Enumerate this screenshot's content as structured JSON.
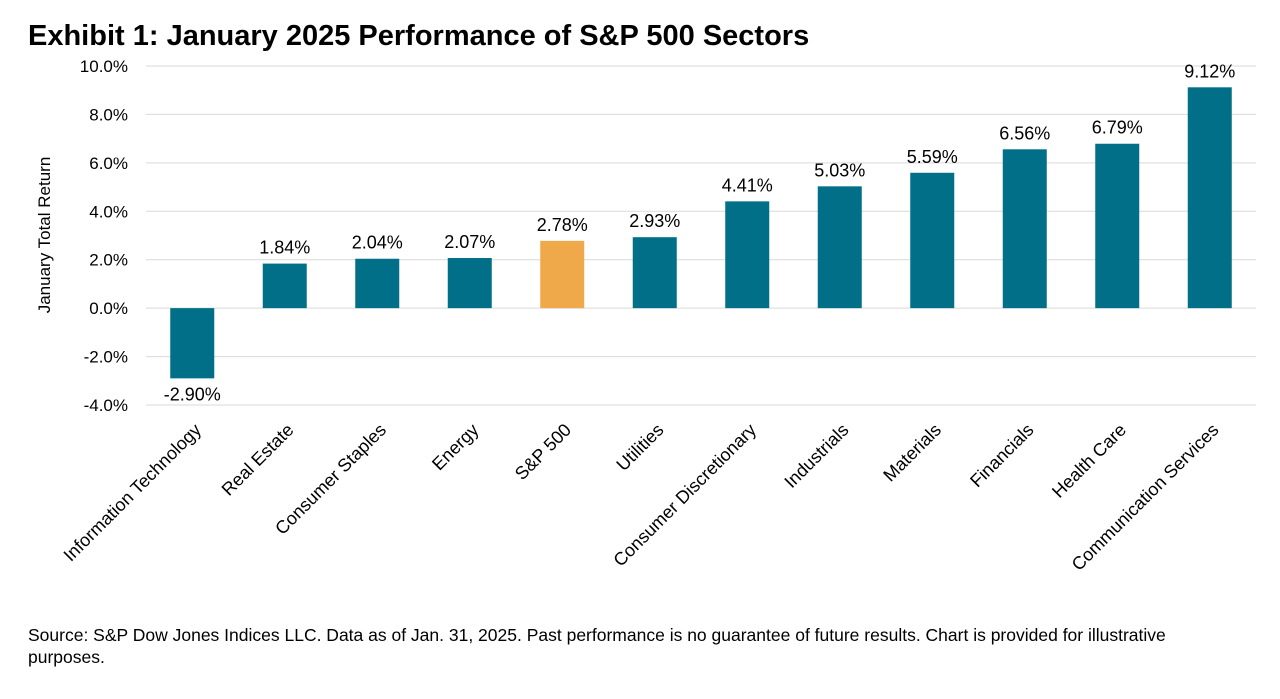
{
  "chart_data": {
    "type": "bar",
    "title": "Exhibit 1: January 2025 Performance of S&P 500 Sectors",
    "ylabel": "January Total Return",
    "xlabel": "",
    "ylim": [
      -4.0,
      10.0
    ],
    "ytick_step": 2.0,
    "ytick_labels": [
      "10.0%",
      "8.0%",
      "6.0%",
      "4.0%",
      "2.0%",
      "0.0%",
      "-2.0%",
      "-4.0%"
    ],
    "grid": true,
    "legend": "none",
    "categories": [
      "Information Technology",
      "Real Estate",
      "Consumer Staples",
      "Energy",
      "S&P 500",
      "Utilities",
      "Consumer Discretionary",
      "Industrials",
      "Materials",
      "Financials",
      "Health Care",
      "Communication Services"
    ],
    "values": [
      -2.9,
      1.84,
      2.04,
      2.07,
      2.78,
      2.93,
      4.41,
      5.03,
      5.59,
      6.56,
      6.79,
      9.12
    ],
    "data_labels": [
      "-2.90%",
      "1.84%",
      "2.04%",
      "2.07%",
      "2.78%",
      "2.93%",
      "4.41%",
      "5.03%",
      "5.59%",
      "6.56%",
      "6.79%",
      "9.12%"
    ],
    "colors": {
      "bar": "#006F87",
      "highlight": "#F0A94A",
      "highlight_category": "S&P 500",
      "grid": "#D9D9D9"
    }
  },
  "source_note": "Source: S&P Dow Jones Indices LLC. Data as of Jan. 31, 2025. Past performance is no guarantee of future results. Chart is provided for illustrative purposes."
}
